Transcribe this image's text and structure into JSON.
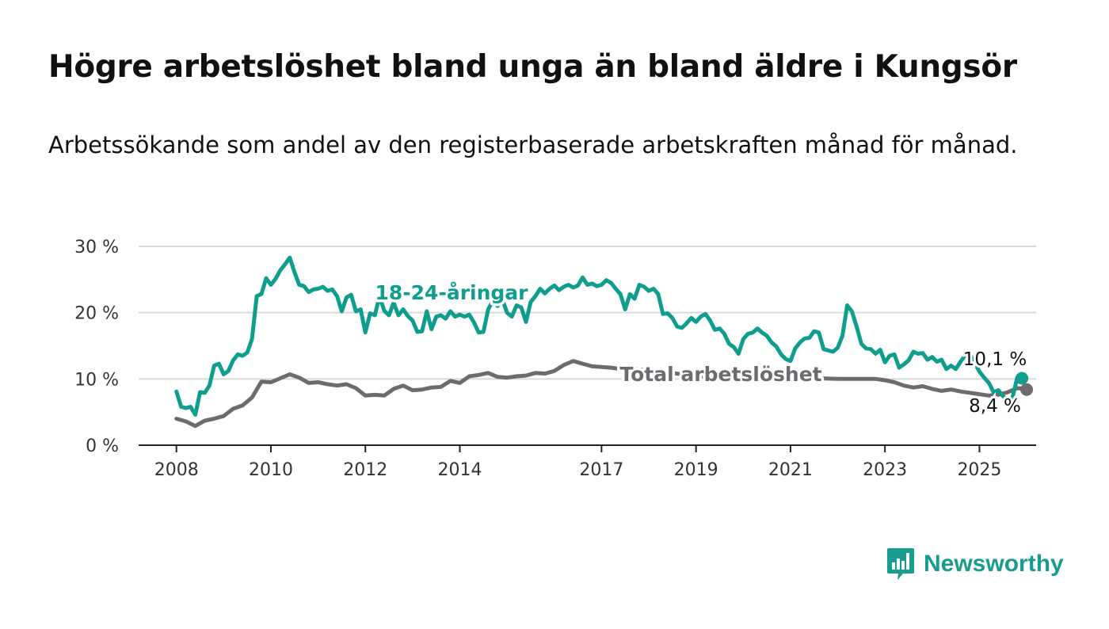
{
  "title": "Högre arbetslöshet bland unga än bland äldre i Kungsör",
  "subtitle": "Arbetssökande som andel av den registerbaserade arbetskraften månad för månad.",
  "brand": {
    "name": "Newsworthy",
    "icon": "newsworthy-logo-icon",
    "color": "#189c8f"
  },
  "chart_data": {
    "type": "line",
    "ylim": [
      0,
      30
    ],
    "yticks": [
      0,
      10,
      20,
      30
    ],
    "ytick_labels": [
      "0 %",
      "10 %",
      "20 %",
      "30 %"
    ],
    "xticks": [
      2008,
      2010,
      2012,
      2014,
      2017,
      2019,
      2021,
      2023,
      2025
    ],
    "xlim": [
      2007.2,
      2026.2
    ],
    "grid": true,
    "series": [
      {
        "name": "18-24-åringar",
        "color": "#0f9e8e",
        "end_label": "10,1 %",
        "points": [
          [
            2008.0,
            8.1
          ],
          [
            2008.1,
            5.8
          ],
          [
            2008.2,
            5.6
          ],
          [
            2008.3,
            5.8
          ],
          [
            2008.4,
            4.6
          ],
          [
            2008.5,
            8.0
          ],
          [
            2008.6,
            7.9
          ],
          [
            2008.7,
            9.0
          ],
          [
            2008.8,
            12.0
          ],
          [
            2008.9,
            12.3
          ],
          [
            2009.0,
            10.7
          ],
          [
            2009.1,
            11.2
          ],
          [
            2009.2,
            12.8
          ],
          [
            2009.3,
            13.7
          ],
          [
            2009.4,
            13.5
          ],
          [
            2009.5,
            14.0
          ],
          [
            2009.6,
            16.0
          ],
          [
            2009.7,
            22.5
          ],
          [
            2009.8,
            22.8
          ],
          [
            2009.9,
            25.2
          ],
          [
            2010.0,
            24.2
          ],
          [
            2010.1,
            25.1
          ],
          [
            2010.2,
            26.4
          ],
          [
            2010.3,
            27.3
          ],
          [
            2010.4,
            28.3
          ],
          [
            2010.5,
            26.1
          ],
          [
            2010.6,
            24.2
          ],
          [
            2010.7,
            24.0
          ],
          [
            2010.8,
            23.1
          ],
          [
            2010.9,
            23.5
          ],
          [
            2011.0,
            23.6
          ],
          [
            2011.1,
            23.9
          ],
          [
            2011.2,
            23.3
          ],
          [
            2011.3,
            23.5
          ],
          [
            2011.4,
            22.5
          ],
          [
            2011.5,
            20.2
          ],
          [
            2011.6,
            22.3
          ],
          [
            2011.7,
            22.7
          ],
          [
            2011.8,
            20.2
          ],
          [
            2011.9,
            20.5
          ],
          [
            2012.0,
            17.0
          ],
          [
            2012.1,
            19.9
          ],
          [
            2012.2,
            19.6
          ],
          [
            2012.3,
            22.5
          ],
          [
            2012.4,
            20.3
          ],
          [
            2012.5,
            19.6
          ],
          [
            2012.6,
            21.5
          ],
          [
            2012.7,
            19.6
          ],
          [
            2012.8,
            20.5
          ],
          [
            2012.9,
            19.5
          ],
          [
            2013.0,
            18.8
          ],
          [
            2013.1,
            17.1
          ],
          [
            2013.2,
            17.2
          ],
          [
            2013.3,
            20.2
          ],
          [
            2013.4,
            17.5
          ],
          [
            2013.5,
            19.4
          ],
          [
            2013.6,
            19.6
          ],
          [
            2013.7,
            19.1
          ],
          [
            2013.8,
            20.2
          ],
          [
            2013.9,
            19.4
          ],
          [
            2014.0,
            19.7
          ],
          [
            2014.1,
            19.4
          ],
          [
            2014.2,
            19.7
          ],
          [
            2014.3,
            18.5
          ],
          [
            2014.4,
            17.0
          ],
          [
            2014.5,
            17.1
          ],
          [
            2014.6,
            20.5
          ],
          [
            2014.7,
            21.8
          ],
          [
            2014.8,
            21.0
          ],
          [
            2014.9,
            22.0
          ],
          [
            2015.0,
            20.0
          ],
          [
            2015.1,
            19.4
          ],
          [
            2015.2,
            21.1
          ],
          [
            2015.3,
            20.8
          ],
          [
            2015.4,
            18.6
          ],
          [
            2015.5,
            21.6
          ],
          [
            2015.6,
            22.5
          ],
          [
            2015.7,
            23.6
          ],
          [
            2015.8,
            22.9
          ],
          [
            2015.9,
            23.6
          ],
          [
            2016.0,
            24.1
          ],
          [
            2016.1,
            23.4
          ],
          [
            2016.2,
            23.9
          ],
          [
            2016.3,
            24.2
          ],
          [
            2016.4,
            23.8
          ],
          [
            2016.5,
            24.1
          ],
          [
            2016.6,
            25.3
          ],
          [
            2016.7,
            24.2
          ],
          [
            2016.8,
            24.4
          ],
          [
            2016.9,
            24.0
          ],
          [
            2017.0,
            24.2
          ],
          [
            2017.1,
            24.9
          ],
          [
            2017.2,
            24.5
          ],
          [
            2017.3,
            23.6
          ],
          [
            2017.4,
            22.8
          ],
          [
            2017.5,
            20.5
          ],
          [
            2017.6,
            22.8
          ],
          [
            2017.7,
            22.1
          ],
          [
            2017.8,
            24.2
          ],
          [
            2017.9,
            23.9
          ],
          [
            2018.0,
            23.3
          ],
          [
            2018.1,
            23.6
          ],
          [
            2018.2,
            22.8
          ],
          [
            2018.3,
            19.8
          ],
          [
            2018.4,
            19.9
          ],
          [
            2018.5,
            19.2
          ],
          [
            2018.6,
            17.9
          ],
          [
            2018.7,
            17.7
          ],
          [
            2018.8,
            18.4
          ],
          [
            2018.9,
            19.2
          ],
          [
            2019.0,
            18.6
          ],
          [
            2019.1,
            19.4
          ],
          [
            2019.2,
            19.8
          ],
          [
            2019.3,
            18.8
          ],
          [
            2019.4,
            17.4
          ],
          [
            2019.5,
            17.6
          ],
          [
            2019.6,
            16.8
          ],
          [
            2019.7,
            15.3
          ],
          [
            2019.8,
            14.8
          ],
          [
            2019.9,
            13.8
          ],
          [
            2020.0,
            16.0
          ],
          [
            2020.1,
            16.8
          ],
          [
            2020.2,
            17.0
          ],
          [
            2020.3,
            17.6
          ],
          [
            2020.4,
            17.0
          ],
          [
            2020.5,
            16.5
          ],
          [
            2020.6,
            15.5
          ],
          [
            2020.7,
            14.9
          ],
          [
            2020.8,
            13.7
          ],
          [
            2020.9,
            13.0
          ],
          [
            2021.0,
            12.7
          ],
          [
            2021.1,
            14.6
          ],
          [
            2021.2,
            15.5
          ],
          [
            2021.3,
            16.1
          ],
          [
            2021.4,
            16.2
          ],
          [
            2021.5,
            17.2
          ],
          [
            2021.6,
            17.0
          ],
          [
            2021.7,
            14.5
          ],
          [
            2021.8,
            14.3
          ],
          [
            2021.9,
            14.1
          ],
          [
            2022.0,
            14.7
          ],
          [
            2022.1,
            16.5
          ],
          [
            2022.2,
            21.1
          ],
          [
            2022.3,
            20.2
          ],
          [
            2022.4,
            17.9
          ],
          [
            2022.5,
            15.3
          ],
          [
            2022.6,
            14.6
          ],
          [
            2022.7,
            14.5
          ],
          [
            2022.8,
            13.8
          ],
          [
            2022.9,
            14.4
          ],
          [
            2023.0,
            12.5
          ],
          [
            2023.1,
            13.5
          ],
          [
            2023.2,
            13.7
          ],
          [
            2023.3,
            11.7
          ],
          [
            2023.4,
            12.2
          ],
          [
            2023.5,
            12.8
          ],
          [
            2023.6,
            14.1
          ],
          [
            2023.7,
            13.8
          ],
          [
            2023.8,
            13.9
          ],
          [
            2023.9,
            12.9
          ],
          [
            2024.0,
            13.3
          ],
          [
            2024.1,
            12.6
          ],
          [
            2024.2,
            12.9
          ],
          [
            2024.3,
            11.5
          ],
          [
            2024.4,
            12.0
          ],
          [
            2024.5,
            11.5
          ],
          [
            2024.6,
            12.6
          ],
          [
            2024.7,
            13.6
          ],
          [
            2024.8,
            13.7
          ],
          [
            2024.9,
            12.4
          ],
          [
            2025.0,
            11.1
          ],
          [
            2025.1,
            10.2
          ],
          [
            2025.2,
            9.4
          ],
          [
            2025.3,
            8.0
          ],
          [
            2025.4,
            8.3
          ],
          [
            2025.5,
            7.4
          ],
          [
            2025.6,
            6.7
          ],
          [
            2025.7,
            7.2
          ],
          [
            2025.8,
            10.2
          ],
          [
            2025.9,
            10.1
          ]
        ]
      },
      {
        "name": "Total arbetslöshet",
        "color": "#6e6b70",
        "end_label": "8,4 %",
        "points": [
          [
            2008.0,
            4.0
          ],
          [
            2008.2,
            3.6
          ],
          [
            2008.4,
            2.9
          ],
          [
            2008.6,
            3.7
          ],
          [
            2008.8,
            4.0
          ],
          [
            2009.0,
            4.4
          ],
          [
            2009.2,
            5.5
          ],
          [
            2009.4,
            6.0
          ],
          [
            2009.6,
            7.2
          ],
          [
            2009.8,
            9.6
          ],
          [
            2010.0,
            9.5
          ],
          [
            2010.2,
            10.1
          ],
          [
            2010.4,
            10.7
          ],
          [
            2010.6,
            10.2
          ],
          [
            2010.8,
            9.4
          ],
          [
            2011.0,
            9.5
          ],
          [
            2011.2,
            9.2
          ],
          [
            2011.4,
            9.0
          ],
          [
            2011.6,
            9.2
          ],
          [
            2011.8,
            8.6
          ],
          [
            2012.0,
            7.5
          ],
          [
            2012.2,
            7.6
          ],
          [
            2012.4,
            7.5
          ],
          [
            2012.6,
            8.5
          ],
          [
            2012.8,
            9.0
          ],
          [
            2013.0,
            8.3
          ],
          [
            2013.2,
            8.4
          ],
          [
            2013.4,
            8.7
          ],
          [
            2013.6,
            8.8
          ],
          [
            2013.8,
            9.7
          ],
          [
            2014.0,
            9.4
          ],
          [
            2014.2,
            10.4
          ],
          [
            2014.4,
            10.6
          ],
          [
            2014.6,
            10.9
          ],
          [
            2014.8,
            10.3
          ],
          [
            2015.0,
            10.2
          ],
          [
            2015.2,
            10.4
          ],
          [
            2015.4,
            10.5
          ],
          [
            2015.6,
            10.9
          ],
          [
            2015.8,
            10.8
          ],
          [
            2016.0,
            11.2
          ],
          [
            2016.2,
            12.1
          ],
          [
            2016.4,
            12.7
          ],
          [
            2016.6,
            12.3
          ],
          [
            2016.8,
            11.9
          ],
          [
            2017.0,
            11.8
          ],
          [
            2017.2,
            11.7
          ],
          [
            2017.4,
            11.5
          ],
          [
            2017.6,
            11.6
          ],
          [
            2017.8,
            11.4
          ],
          [
            2018.0,
            11.3
          ],
          [
            2018.4,
            11.0
          ],
          [
            2018.8,
            10.6
          ],
          [
            2019.2,
            10.3
          ],
          [
            2019.6,
            10.1
          ],
          [
            2020.0,
            10.0
          ],
          [
            2020.4,
            10.1
          ],
          [
            2020.8,
            10.2
          ],
          [
            2021.2,
            10.0
          ],
          [
            2021.6,
            10.1
          ],
          [
            2022.0,
            10.0
          ],
          [
            2022.4,
            10.0
          ],
          [
            2022.8,
            10.0
          ],
          [
            2023.0,
            9.8
          ],
          [
            2023.2,
            9.5
          ],
          [
            2023.4,
            9.0
          ],
          [
            2023.6,
            8.7
          ],
          [
            2023.8,
            8.9
          ],
          [
            2024.0,
            8.5
          ],
          [
            2024.2,
            8.2
          ],
          [
            2024.4,
            8.4
          ],
          [
            2024.6,
            8.1
          ],
          [
            2024.8,
            7.9
          ],
          [
            2025.0,
            7.7
          ],
          [
            2025.2,
            7.5
          ],
          [
            2025.4,
            7.6
          ],
          [
            2025.6,
            8.0
          ],
          [
            2025.8,
            8.6
          ],
          [
            2026.0,
            8.5
          ],
          [
            2026.0,
            8.4
          ]
        ]
      }
    ]
  }
}
